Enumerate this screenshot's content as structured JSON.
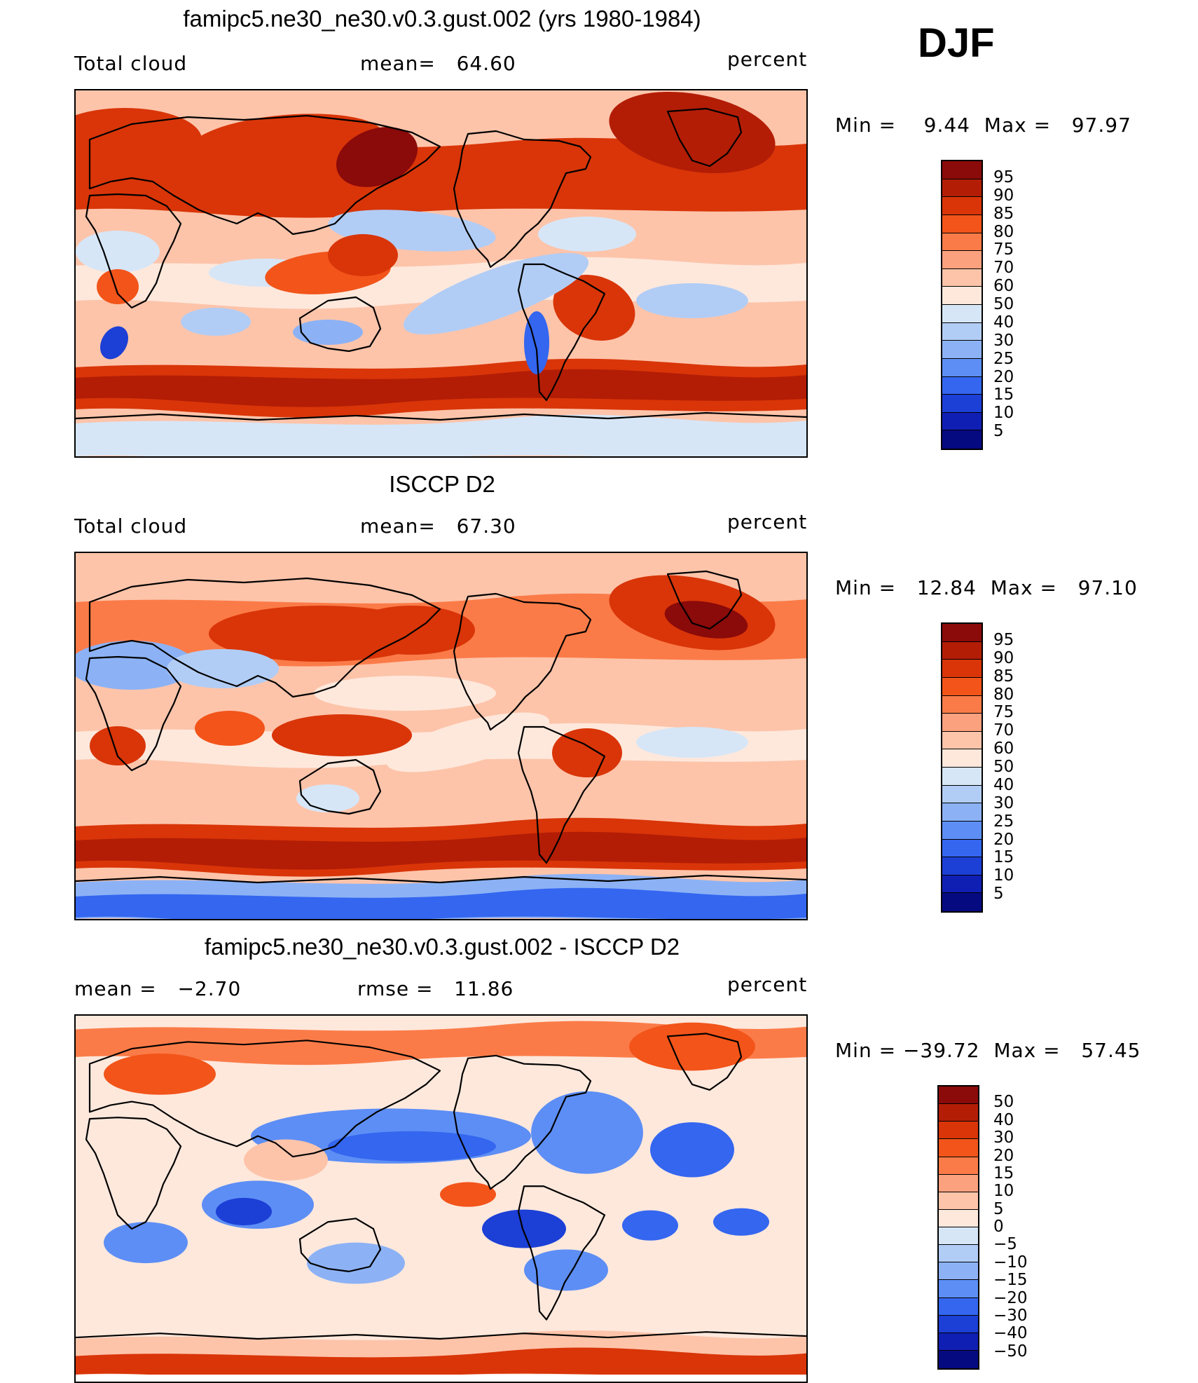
{
  "season": "DJF",
  "panels": [
    {
      "title": "famipc5.ne30_ne30.v0.3.gust.002 (yrs 1980-1984)",
      "left_label": "Total cloud",
      "center_label": "mean=   64.60",
      "right_label": "percent",
      "minmax": "Min =    9.44  Max =   97.97",
      "field": "model",
      "colorbar": {
        "colors": [
          "#8b0a0a",
          "#b31d06",
          "#d93508",
          "#f2541a",
          "#fb7b48",
          "#fca17e",
          "#fdc4aa",
          "#fee8dc",
          "#d6e6f7",
          "#b2cdf5",
          "#8cb2f5",
          "#5d8ef5",
          "#3466f0",
          "#1c3fd6",
          "#0f1fb3",
          "#060a80"
        ],
        "ticks": [
          "95",
          "90",
          "85",
          "80",
          "75",
          "70",
          "60",
          "50",
          "40",
          "30",
          "25",
          "20",
          "15",
          "10",
          "5"
        ]
      }
    },
    {
      "title": "ISCCP D2",
      "left_label": "Total cloud",
      "center_label": "mean=   67.30",
      "right_label": "percent",
      "minmax": "Min =   12.84  Max =   97.10",
      "field": "obs",
      "colorbar": {
        "colors": [
          "#8b0a0a",
          "#b31d06",
          "#d93508",
          "#f2541a",
          "#fb7b48",
          "#fca17e",
          "#fdc4aa",
          "#fee8dc",
          "#d6e6f7",
          "#b2cdf5",
          "#8cb2f5",
          "#5d8ef5",
          "#3466f0",
          "#1c3fd6",
          "#0f1fb3",
          "#060a80"
        ],
        "ticks": [
          "95",
          "90",
          "85",
          "80",
          "75",
          "70",
          "60",
          "50",
          "40",
          "30",
          "25",
          "20",
          "15",
          "10",
          "5"
        ]
      }
    },
    {
      "title": "famipc5.ne30_ne30.v0.3.gust.002 - ISCCP D2",
      "left_label": "mean =   −2.70",
      "center_label": "rmse =   11.86",
      "right_label": "percent",
      "minmax": "Min = −39.72  Max =   57.45",
      "field": "diff",
      "colorbar": {
        "colors": [
          "#8b0a0a",
          "#b31d06",
          "#d93508",
          "#f2541a",
          "#fb7b48",
          "#fca17e",
          "#fdc4aa",
          "#fee8dc",
          "#d6e6f7",
          "#b2cdf5",
          "#8cb2f5",
          "#5d8ef5",
          "#3466f0",
          "#1c3fd6",
          "#0f1fb3",
          "#060a80"
        ],
        "ticks": [
          "50",
          "40",
          "30",
          "20",
          "15",
          "10",
          "5",
          "0",
          "−5",
          "−10",
          "−15",
          "−20",
          "−30",
          "−40",
          "−50"
        ]
      }
    }
  ]
}
